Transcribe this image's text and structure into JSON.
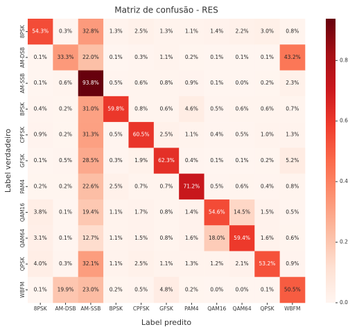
{
  "chart_data": {
    "type": "heatmap",
    "title": "Matriz de confusão - RES",
    "xlabel": "Label predito",
    "ylabel": "Label verdadeiro",
    "x_categories": [
      "8PSK",
      "AM-DSB",
      "AM-SSB",
      "BPSK",
      "CPFSK",
      "GFSK",
      "PAM4",
      "QAM16",
      "QAM64",
      "QPSK",
      "WBFM"
    ],
    "y_categories": [
      "8PSK",
      "AM-DSB",
      "AM-SSB",
      "BPSK",
      "CPFSK",
      "GFSK",
      "PAM4",
      "QAM16",
      "QAM64",
      "QPSK",
      "WBFM"
    ],
    "values": [
      [
        0.543,
        0.003,
        0.328,
        0.013,
        0.025,
        0.013,
        0.011,
        0.014,
        0.022,
        0.03,
        0.008
      ],
      [
        0.001,
        0.333,
        0.22,
        0.001,
        0.003,
        0.011,
        0.002,
        0.001,
        0.001,
        0.001,
        0.432
      ],
      [
        0.001,
        0.006,
        0.938,
        0.005,
        0.006,
        0.008,
        0.009,
        0.001,
        0,
        0.002,
        0.023
      ],
      [
        0.004,
        0.002,
        0.31,
        0.598,
        0.008,
        0.006,
        0.046,
        0.005,
        0.006,
        0.006,
        0.007
      ],
      [
        0.009,
        0.002,
        0.313,
        0.005,
        0.605,
        0.025,
        0.011,
        0.004,
        0.005,
        0.01,
        0.013
      ],
      [
        0.001,
        0.005,
        0.285,
        0.003,
        0.019,
        0.623,
        0.004,
        0.001,
        0.001,
        0.002,
        0.052
      ],
      [
        0.002,
        0.002,
        0.226,
        0.025,
        0.007,
        0.007,
        0.712,
        0.005,
        0.006,
        0.004,
        0.008
      ],
      [
        0.038,
        0.001,
        0.194,
        0.011,
        0.017,
        0.008,
        0.014,
        0.546,
        0.145,
        0.015,
        0.005
      ],
      [
        0.031,
        0.001,
        0.127,
        0.011,
        0.015,
        0.008,
        0.016,
        0.18,
        0.594,
        0.016,
        0.006
      ],
      [
        0.04,
        0.003,
        0.321,
        0.011,
        0.025,
        0.011,
        0.013,
        0.012,
        0.021,
        0.532,
        0.009
      ],
      [
        0.001,
        0.199,
        0.23,
        0.002,
        0.005,
        0.048,
        0.002,
        0,
        0,
        0.001,
        0.505
      ]
    ],
    "value_labels": [
      [
        "54.3%",
        "0.3%",
        "32.8%",
        "1.3%",
        "2.5%",
        "1.3%",
        "1.1%",
        "1.4%",
        "2.2%",
        "3.0%",
        "0.8%"
      ],
      [
        "0.1%",
        "33.3%",
        "22.0%",
        "0.1%",
        "0.3%",
        "1.1%",
        "0.2%",
        "0.1%",
        "0.1%",
        "0.1%",
        "43.2%"
      ],
      [
        "0.1%",
        "0.6%",
        "93.8%",
        "0.5%",
        "0.6%",
        "0.8%",
        "0.9%",
        "0.1%",
        "0.0%",
        "0.2%",
        "2.3%"
      ],
      [
        "0.4%",
        "0.2%",
        "31.0%",
        "59.8%",
        "0.8%",
        "0.6%",
        "4.6%",
        "0.5%",
        "0.6%",
        "0.6%",
        "0.7%"
      ],
      [
        "0.9%",
        "0.2%",
        "31.3%",
        "0.5%",
        "60.5%",
        "2.5%",
        "1.1%",
        "0.4%",
        "0.5%",
        "1.0%",
        "1.3%"
      ],
      [
        "0.1%",
        "0.5%",
        "28.5%",
        "0.3%",
        "1.9%",
        "62.3%",
        "0.4%",
        "0.1%",
        "0.1%",
        "0.2%",
        "5.2%"
      ],
      [
        "0.2%",
        "0.2%",
        "22.6%",
        "2.5%",
        "0.7%",
        "0.7%",
        "71.2%",
        "0.5%",
        "0.6%",
        "0.4%",
        "0.8%"
      ],
      [
        "3.8%",
        "0.1%",
        "19.4%",
        "1.1%",
        "1.7%",
        "0.8%",
        "1.4%",
        "54.6%",
        "14.5%",
        "1.5%",
        "0.5%"
      ],
      [
        "3.1%",
        "0.1%",
        "12.7%",
        "1.1%",
        "1.5%",
        "0.8%",
        "1.6%",
        "18.0%",
        "59.4%",
        "1.6%",
        "0.6%"
      ],
      [
        "4.0%",
        "0.3%",
        "32.1%",
        "1.1%",
        "2.5%",
        "1.1%",
        "1.3%",
        "1.2%",
        "2.1%",
        "53.2%",
        "0.9%"
      ],
      [
        "0.1%",
        "19.9%",
        "23.0%",
        "0.2%",
        "0.5%",
        "4.8%",
        "0.2%",
        "0.0%",
        "0.0%",
        "0.1%",
        "50.5%"
      ]
    ],
    "colormap": "Reds",
    "clim": [
      0,
      0.938
    ],
    "cticks": [
      {
        "value": 0,
        "label": "0.0"
      },
      0.2,
      0.4,
      0.6,
      0.8
    ]
  }
}
